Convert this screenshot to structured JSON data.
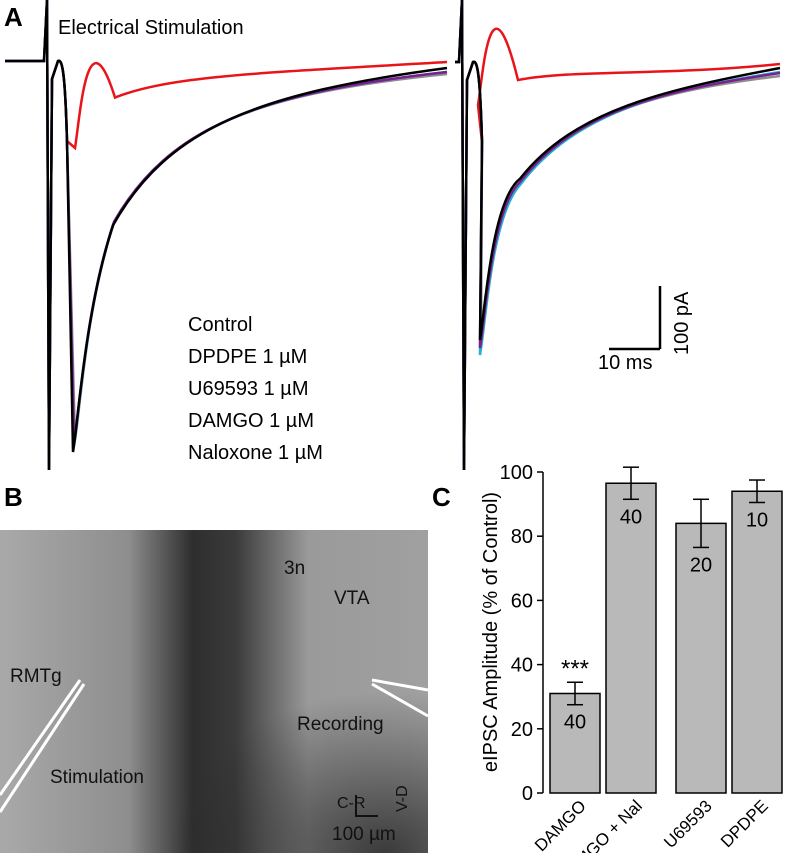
{
  "panel_a": {
    "label": "A",
    "title": "Electrical Stimulation",
    "legend": [
      {
        "name": "Control",
        "color": "#000000"
      },
      {
        "name": "DPDPE 1 µM",
        "color": "#1fb3cf"
      },
      {
        "name": "U69593 1 µM",
        "color": "#7a1f8f"
      },
      {
        "name": "DAMGO 1 µM",
        "color": "#e8141a"
      },
      {
        "name": "Naloxone 1 µM",
        "color": "#8c8c8c"
      }
    ],
    "scale_x": "10 ms",
    "scale_y": "100 pA"
  },
  "panel_b": {
    "label": "B",
    "regions": [
      "RMTg",
      "3n",
      "VTA"
    ],
    "stimulation": "Stimulation",
    "recording": "Recording",
    "axes": [
      "C-R",
      "V-D"
    ],
    "scale": "100 µm"
  },
  "chart_data": {
    "type": "bar",
    "label": "C",
    "ylabel": "eIPSC Amplitude (% of Control)",
    "categories": [
      "DAMGO",
      "DAMGO + Nal",
      "U69593",
      "DPDPE"
    ],
    "values": [
      31,
      96.5,
      84,
      94
    ],
    "errors": [
      3.5,
      5,
      7.5,
      3.5
    ],
    "n": [
      40,
      40,
      20,
      10
    ],
    "annotation": "***",
    "color": "#b9b9b9",
    "ylim": [
      0,
      100
    ],
    "yticks": [
      0,
      20,
      40,
      60,
      80,
      100
    ]
  }
}
